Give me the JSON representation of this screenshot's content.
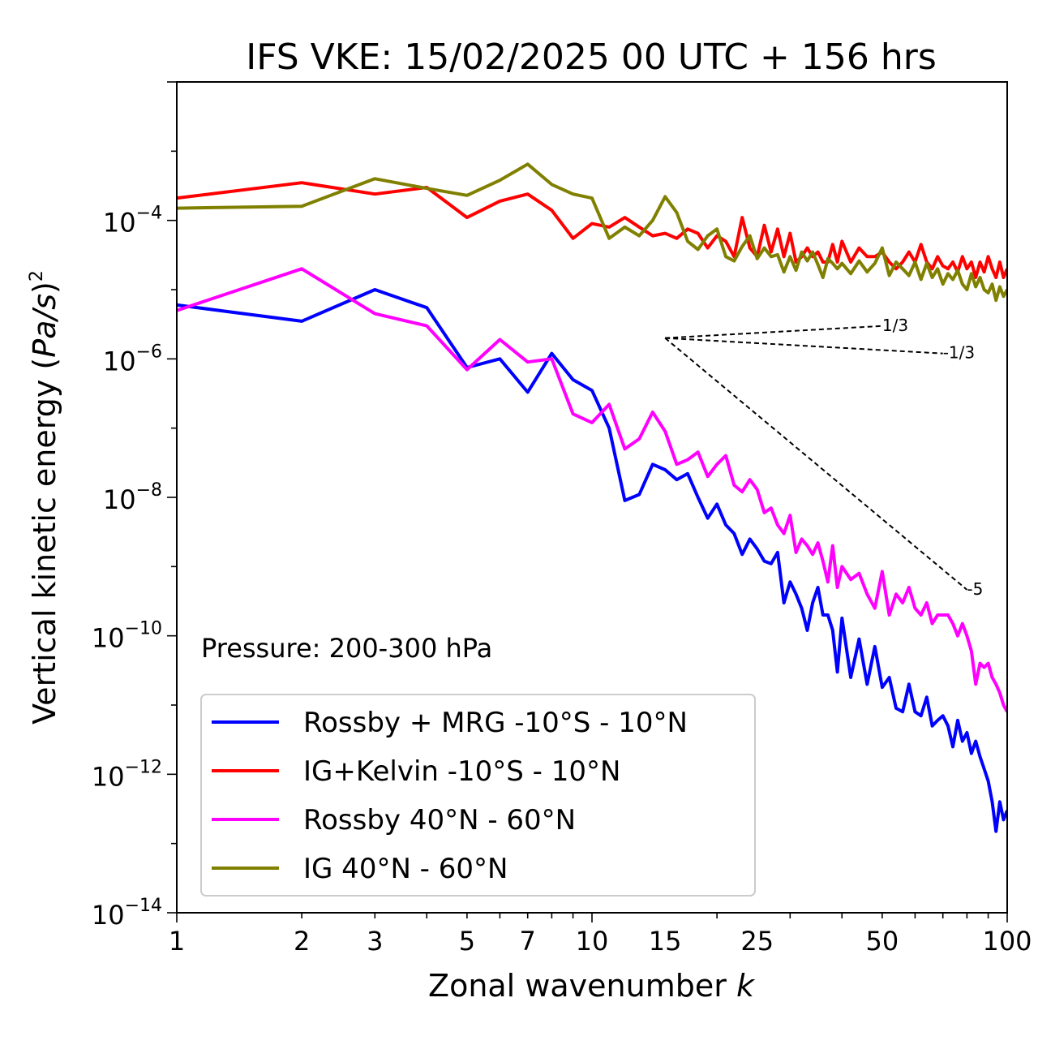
{
  "chart_data": {
    "type": "line",
    "title": "IFS VKE: 15/02/2025 00 UTC + 156 hrs",
    "xlabel_text": "Zonal wavenumber ",
    "xlabel_var": "k",
    "ylabel_text": "Vertical kinetic energy (",
    "ylabel_var": "Pa/s",
    "ylabel_close": ")",
    "ylabel_exp": "2",
    "x_scale": "log",
    "y_scale": "log",
    "xlim": [
      1,
      100
    ],
    "ylim": [
      1e-14,
      0.01
    ],
    "grid": false,
    "legend_placement": "lower-left",
    "annotation": "Pressure: 200-300 hPa",
    "x_ticks": [
      {
        "value": 1,
        "label": "1"
      },
      {
        "value": 2,
        "label": "2"
      },
      {
        "value": 3,
        "label": "3"
      },
      {
        "value": 5,
        "label": "5"
      },
      {
        "value": 7,
        "label": "7"
      },
      {
        "value": 10,
        "label": "10"
      },
      {
        "value": 15,
        "label": "15"
      },
      {
        "value": 25,
        "label": "25"
      },
      {
        "value": 50,
        "label": "50"
      },
      {
        "value": 100,
        "label": "100"
      }
    ],
    "y_ticks": [
      {
        "exp": -4,
        "base": "10",
        "sup": "−4"
      },
      {
        "exp": -6,
        "base": "10",
        "sup": "−6"
      },
      {
        "exp": -8,
        "base": "10",
        "sup": "−8"
      },
      {
        "exp": -10,
        "base": "10",
        "sup": "−10"
      },
      {
        "exp": -12,
        "base": "10",
        "sup": "−12"
      },
      {
        "exp": -14,
        "base": "10",
        "sup": "−14"
      }
    ],
    "reference_slopes": [
      {
        "label": "1/3",
        "slope": 0.3333,
        "x_start": 15,
        "x_end": 50,
        "y_start": 2e-06
      },
      {
        "label": "-1/3",
        "slope": -0.3333,
        "x_start": 15,
        "x_end": 70,
        "y_start": 2e-06
      },
      {
        "label": "-5",
        "slope": -5,
        "x_start": 15,
        "x_end": 80,
        "y_start": 2e-06
      }
    ],
    "series": [
      {
        "name": "Rossby + MRG -10°S - 10°N",
        "color": "#0000ff",
        "x": [
          1,
          2,
          3,
          4,
          5,
          6,
          7,
          8,
          9,
          10,
          11,
          12,
          13,
          14,
          15,
          16,
          17,
          18,
          19,
          20,
          21,
          22,
          23,
          24,
          25,
          26,
          27,
          28,
          29,
          30,
          31,
          32,
          33,
          34,
          35,
          36,
          37,
          38,
          39,
          40,
          42,
          44,
          46,
          48,
          50,
          52,
          54,
          56,
          58,
          60,
          62,
          64,
          66,
          68,
          70,
          72,
          74,
          76,
          78,
          80,
          82,
          84,
          86,
          88,
          90,
          92,
          94,
          96,
          98,
          100
        ],
        "y": [
          6e-06,
          3.5e-06,
          1e-05,
          5.5e-06,
          7.5e-07,
          1e-06,
          3.3e-07,
          1.2e-06,
          5e-07,
          3.5e-07,
          1e-07,
          9e-09,
          1.1e-08,
          3e-08,
          2.5e-08,
          1.8e-08,
          2.2e-08,
          1e-08,
          5e-09,
          8e-09,
          4e-09,
          3e-09,
          1.5e-09,
          2.5e-09,
          1.8e-09,
          1.2e-09,
          1.1e-09,
          1.6e-09,
          3e-10,
          6e-10,
          4e-10,
          2.5e-10,
          1.2e-10,
          3e-10,
          5e-10,
          2e-10,
          2e-10,
          1.2e-10,
          3e-11,
          1.8e-10,
          2.5e-11,
          9e-11,
          2e-11,
          7e-11,
          1.8e-11,
          2.5e-11,
          9e-12,
          8e-12,
          2e-11,
          8e-12,
          7e-12,
          1.3e-11,
          5e-12,
          6e-12,
          7e-12,
          5e-12,
          2.5e-12,
          6e-12,
          3e-12,
          4e-12,
          2e-12,
          3e-12,
          1.8e-12,
          1.2e-12,
          8e-13,
          4e-13,
          1.5e-13,
          4e-13,
          2.2e-13,
          3e-13
        ]
      },
      {
        "name": "IG+Kelvin -10°S - 10°N",
        "color": "#ff0000",
        "x": [
          1,
          2,
          3,
          4,
          5,
          6,
          7,
          8,
          9,
          10,
          11,
          12,
          13,
          14,
          15,
          16,
          17,
          18,
          19,
          20,
          21,
          22,
          23,
          24,
          25,
          26,
          27,
          28,
          29,
          30,
          31,
          32,
          33,
          34,
          35,
          36,
          37,
          38,
          39,
          40,
          42,
          44,
          46,
          48,
          50,
          52,
          54,
          56,
          58,
          60,
          62,
          64,
          66,
          68,
          70,
          72,
          74,
          76,
          78,
          80,
          82,
          84,
          86,
          88,
          90,
          92,
          94,
          96,
          98,
          100
        ],
        "y": [
          0.00021,
          0.00035,
          0.00024,
          0.0003,
          0.00011,
          0.00019,
          0.00024,
          0.00014,
          5.5e-05,
          9e-05,
          8e-05,
          0.00011,
          8e-05,
          6e-05,
          6.5e-05,
          5.5e-05,
          7.5e-05,
          6.5e-05,
          4e-05,
          6e-05,
          5e-05,
          3e-05,
          0.00011,
          4e-05,
          3e-05,
          8.5e-05,
          3.5e-05,
          7.5e-05,
          3e-05,
          6.5e-05,
          2.5e-05,
          3e-05,
          4e-05,
          3e-05,
          3.5e-05,
          2.5e-05,
          2.5e-05,
          4.5e-05,
          2.5e-05,
          5e-05,
          2.5e-05,
          4e-05,
          3e-05,
          3e-05,
          3.5e-05,
          2.5e-05,
          2e-05,
          2.5e-05,
          3.5e-05,
          2.5e-05,
          4.5e-05,
          2.5e-05,
          2e-05,
          3e-05,
          2.2e-05,
          2e-05,
          2.5e-05,
          1.8e-05,
          3e-05,
          2e-05,
          2.5e-05,
          1.5e-05,
          2.5e-05,
          1.8e-05,
          3e-05,
          2e-05,
          1.5e-05,
          2.5e-05,
          1.5e-05,
          2e-05
        ]
      },
      {
        "name": "Rossby 40°N - 60°N",
        "color": "#ff00ff",
        "x": [
          1,
          2,
          3,
          4,
          5,
          6,
          7,
          8,
          9,
          10,
          11,
          12,
          13,
          14,
          15,
          16,
          17,
          18,
          19,
          20,
          21,
          22,
          23,
          24,
          25,
          26,
          27,
          28,
          29,
          30,
          31,
          32,
          33,
          34,
          35,
          36,
          37,
          38,
          39,
          40,
          42,
          44,
          46,
          48,
          50,
          52,
          54,
          56,
          58,
          60,
          62,
          64,
          66,
          68,
          70,
          72,
          74,
          76,
          78,
          80,
          82,
          84,
          86,
          88,
          90,
          92,
          94,
          96,
          98,
          100
        ],
        "y": [
          5e-06,
          2e-05,
          4.5e-06,
          3e-06,
          7e-07,
          1.9e-06,
          9e-07,
          1e-06,
          1.6e-07,
          1.2e-07,
          2.2e-07,
          5e-08,
          7e-08,
          1.7e-07,
          9e-08,
          3e-08,
          3.5e-08,
          4.5e-08,
          2e-08,
          3e-08,
          4e-08,
          1.5e-08,
          1.2e-08,
          1.8e-08,
          1.3e-08,
          6e-09,
          7e-09,
          4e-09,
          3e-09,
          5.5e-09,
          1.6e-09,
          2.5e-09,
          2e-09,
          1.5e-09,
          2.2e-09,
          1.2e-09,
          6e-10,
          2e-09,
          5e-10,
          1e-09,
          6.5e-10,
          8e-10,
          4e-10,
          2.5e-10,
          8.5e-10,
          2e-10,
          4e-10,
          3e-10,
          5e-10,
          2.5e-10,
          2e-10,
          3e-10,
          1.5e-10,
          2e-10,
          2e-10,
          2e-10,
          1.5e-10,
          1e-10,
          1.5e-10,
          1e-10,
          6e-11,
          2e-11,
          4e-11,
          3.5e-11,
          4e-11,
          2.5e-11,
          2e-11,
          1.5e-11,
          1e-11,
          8e-12
        ]
      },
      {
        "name": "IG 40°N - 60°N",
        "color": "#808000",
        "x": [
          1,
          2,
          3,
          4,
          5,
          6,
          7,
          8,
          9,
          10,
          11,
          12,
          13,
          14,
          15,
          16,
          17,
          18,
          19,
          20,
          21,
          22,
          23,
          24,
          25,
          26,
          27,
          28,
          29,
          30,
          31,
          32,
          33,
          34,
          35,
          36,
          37,
          38,
          39,
          40,
          42,
          44,
          46,
          48,
          50,
          52,
          54,
          56,
          58,
          60,
          62,
          64,
          66,
          68,
          70,
          72,
          74,
          76,
          78,
          80,
          82,
          84,
          86,
          88,
          90,
          92,
          94,
          96,
          98,
          100
        ],
        "y": [
          0.00015,
          0.00016,
          0.0004,
          0.00029,
          0.00023,
          0.00038,
          0.00065,
          0.00033,
          0.00024,
          0.00021,
          5.5e-05,
          8e-05,
          6e-05,
          0.0001,
          0.00022,
          0.00013,
          5e-05,
          3.8e-05,
          6e-05,
          7.5e-05,
          3e-05,
          2.6e-05,
          4.2e-05,
          6e-05,
          2.8e-05,
          4e-05,
          3e-05,
          3.2e-05,
          1.8e-05,
          3e-05,
          1.9e-05,
          3.5e-05,
          2.6e-05,
          3.5e-05,
          2.3e-05,
          1.5e-05,
          2.8e-05,
          2.4e-05,
          2e-05,
          2.4e-05,
          1.7e-05,
          2.6e-05,
          1.8e-05,
          2.4e-05,
          4e-05,
          1.6e-05,
          2.5e-05,
          2e-05,
          1.6e-05,
          2.5e-05,
          1.4e-05,
          2.4e-05,
          1.5e-05,
          2e-05,
          1.2e-05,
          1.7e-05,
          1.4e-05,
          1.9e-05,
          1.2e-05,
          1e-05,
          1.7e-05,
          1.1e-05,
          1.5e-05,
          1e-05,
          9e-06,
          1.2e-05,
          7e-06,
          1.1e-05,
          8e-06,
          1e-05
        ]
      }
    ]
  }
}
